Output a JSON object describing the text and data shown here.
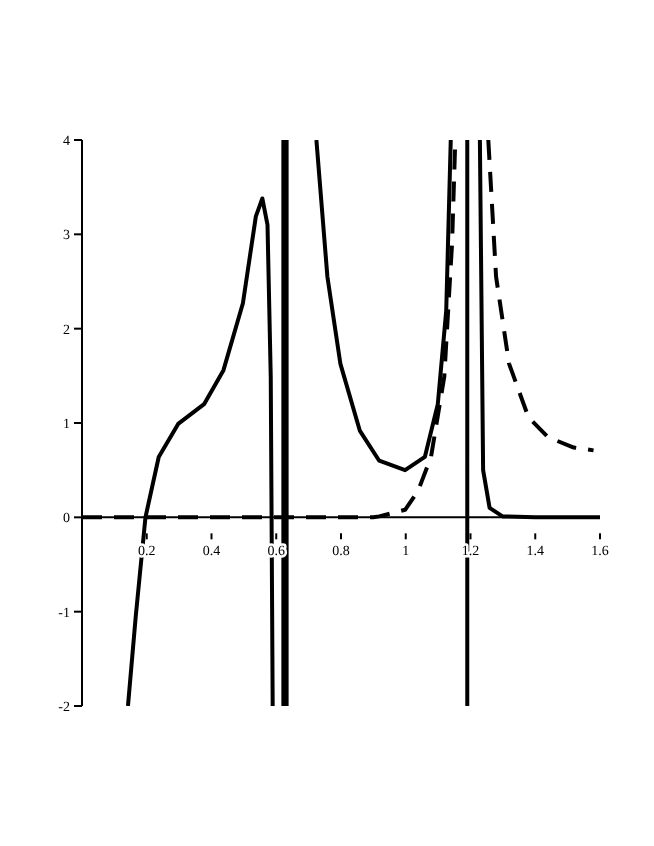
{
  "chart_data": {
    "type": "line",
    "xlim": [
      0,
      1.6
    ],
    "ylim": [
      -2,
      4
    ],
    "xticks": [
      0.2,
      0.4,
      0.6,
      0.8,
      1,
      1.2,
      1.4,
      1.6
    ],
    "yticks": [
      -2,
      -1,
      0,
      1,
      2,
      3,
      4
    ],
    "marker": "none",
    "series": [
      {
        "color": "#000000",
        "line_style": "solid",
        "x": [
          0.142,
          0.166,
          0.196,
          0.237,
          0.297,
          0.377,
          0.437,
          0.497,
          0.537,
          0.557,
          0.573,
          0.583,
          0.589,
          null,
          0.622,
          0.622,
          null,
          0.632,
          0.632,
          null,
          0.724,
          0.758,
          0.798,
          0.858,
          0.918,
          0.998,
          1.059,
          1.099,
          1.125,
          1.139,
          null,
          1.19,
          1.19,
          null,
          1.229,
          1.239,
          1.259,
          1.299,
          1.4,
          1.5,
          1.6
        ],
        "values": [
          -2,
          -1.05,
          0,
          0.64,
          0.99,
          1.2,
          1.56,
          2.27,
          3.19,
          3.38,
          3.1,
          1.49,
          -2,
          null,
          -2,
          4,
          null,
          4,
          -2,
          null,
          4,
          2.55,
          1.63,
          0.92,
          0.6,
          0.5,
          0.64,
          1.2,
          2.19,
          4,
          null,
          4,
          -2,
          null,
          4,
          0.5,
          0.1,
          0.01,
          0,
          0,
          0
        ]
      },
      {
        "color": "#000000",
        "line_style": "dashed",
        "x": [
          0,
          0.3,
          0.6,
          0.9,
          0.918,
          0.998,
          1.038,
          1.078,
          1.119,
          1.143,
          1.153,
          null,
          1.255,
          1.279,
          1.319,
          1.379,
          1.439,
          1.519,
          1.58
        ],
        "values": [
          0,
          0,
          0,
          0,
          0.01,
          0.08,
          0.28,
          0.64,
          1.49,
          2.9,
          4,
          null,
          4,
          2.55,
          1.63,
          1.06,
          0.85,
          0.74,
          0.71
        ]
      }
    ]
  }
}
